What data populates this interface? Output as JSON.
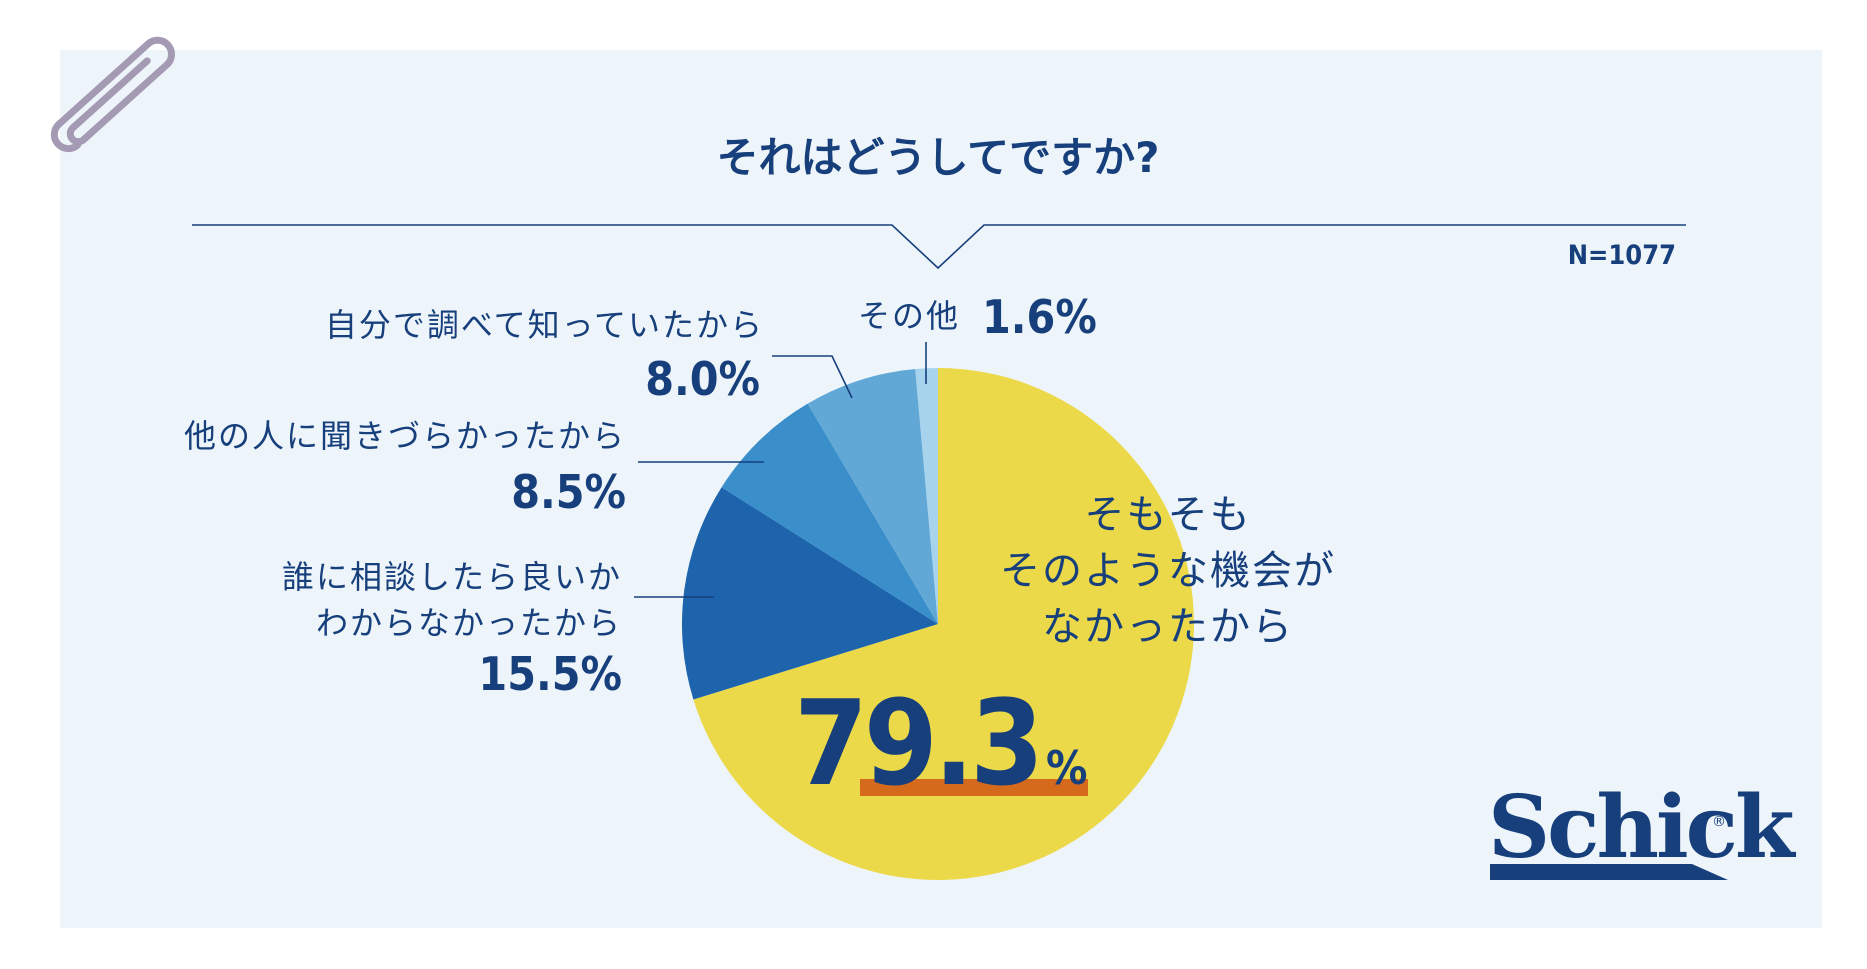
{
  "title": "それはどうしてですか?",
  "sample_size": "N=1077",
  "brand": {
    "name": "Schick",
    "mark": "®"
  },
  "colors": {
    "navy": "#163f7c",
    "yellow": "#ebd94a",
    "dark_blue": "#1d64ac",
    "mid_blue": "#3a8fca",
    "light_blue": "#62a8d6",
    "pale_blue": "#a7d3ec",
    "underline": "#d66a1c",
    "clip": "#a59ab4"
  },
  "chart_data": {
    "type": "pie",
    "slices": [
      {
        "label_lines": [
          "そもそも",
          "そのような機会が",
          "なかったから"
        ],
        "value": 79.3,
        "value_text": "79.3",
        "unit": "%",
        "color": "#ebd94a"
      },
      {
        "label_lines": [
          "誰に相談したら良いか",
          "わからなかったから"
        ],
        "value": 15.5,
        "value_text": "15.5%",
        "color": "#1d64ac"
      },
      {
        "label_lines": [
          "他の人に聞きづらかったから"
        ],
        "value": 8.5,
        "value_text": "8.5%",
        "color": "#3a8fca"
      },
      {
        "label_lines": [
          "自分で調べて知っていたから"
        ],
        "value": 8.0,
        "value_text": "8.0%",
        "color": "#62a8d6"
      },
      {
        "label_lines": [
          "その他"
        ],
        "value": 1.6,
        "value_text": "1.6%",
        "color": "#a7d3ec"
      }
    ]
  }
}
